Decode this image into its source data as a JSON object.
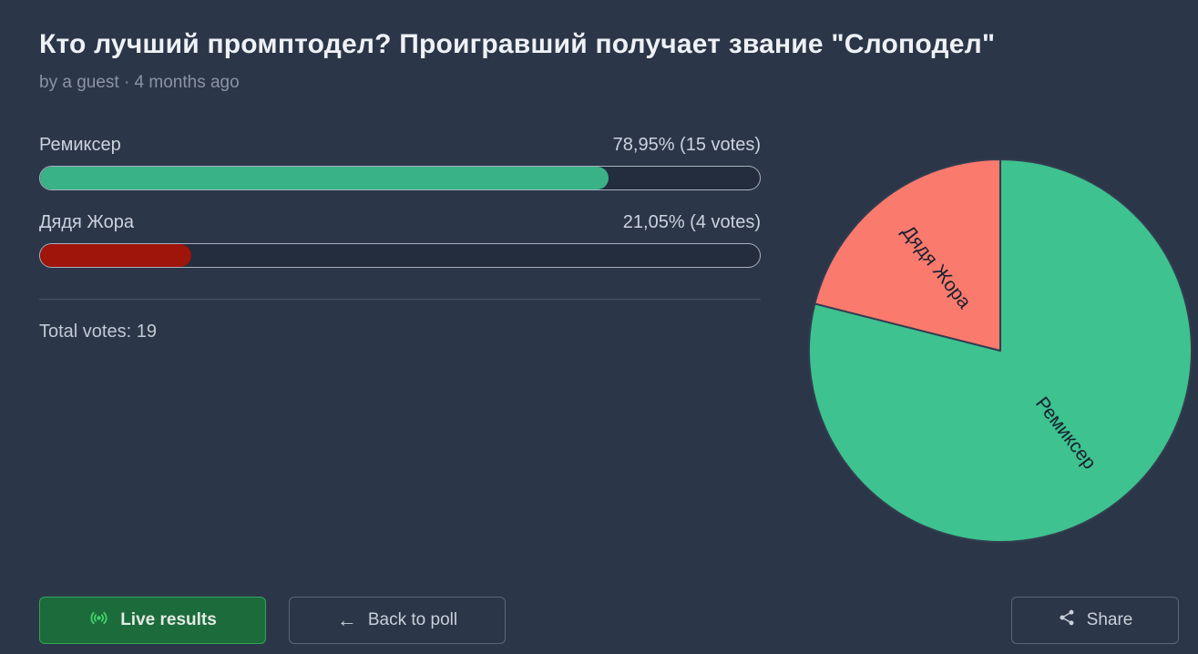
{
  "poll": {
    "title": "Кто лучший промптодел? Проигравший получает звание \"Слоподел\"",
    "byline": "by a guest · 4 months ago",
    "options": [
      {
        "label": "Ремиксер",
        "result": "78,95% (15 votes)",
        "percent": 78.95,
        "votes": 15,
        "color": "#3ab287"
      },
      {
        "label": "Дядя Жора",
        "result": "21,05% (4 votes)",
        "percent": 21.05,
        "votes": 4,
        "color": "#9f140b"
      }
    ],
    "total_votes": "Total votes: 19"
  },
  "chart_data": {
    "type": "pie",
    "categories": [
      "Ремиксер",
      "Дядя Жора"
    ],
    "values": [
      15,
      4
    ],
    "percentages": [
      78.95,
      21.05
    ],
    "colors": [
      "#3ec28f",
      "#fa7a6e"
    ],
    "label_color": "#17202e",
    "slice_stroke": "#323d50",
    "title": "",
    "legend": "labels-inside-slices",
    "start_angle_deg": 0,
    "direction": "clockwise"
  },
  "buttons": {
    "live_results": "Live results",
    "back_to_poll": "Back to poll",
    "share": "Share",
    "back_arrow_glyph": "←"
  },
  "icons": {
    "live_icon": "broadcast-live-icon",
    "back_icon": "arrow-left-icon",
    "share_icon": "share-nodes-icon"
  },
  "colors": {
    "background": "#2b3648",
    "title_text": "#eef1f6",
    "muted_text": "#8b94a4",
    "bar_track": "#232d3d",
    "bar_border": "#a9b1bf",
    "live_button_bg": "#1c6b3b",
    "live_button_border": "#33a35a",
    "live_icon_green": "#3fd36b"
  }
}
